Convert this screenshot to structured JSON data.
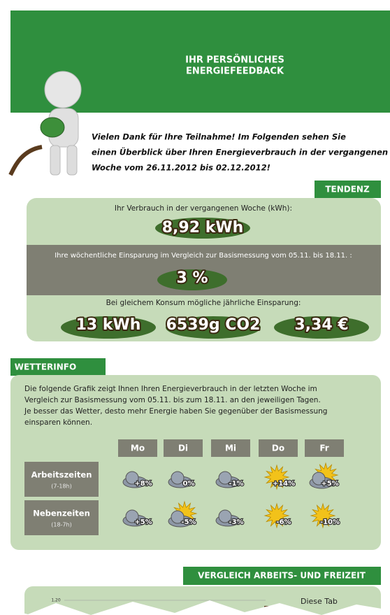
{
  "header": {
    "title_lines": [
      "IHR PERSÖNLICHES",
      "ENERGIEFEEDBACK"
    ]
  },
  "intro": {
    "lines": [
      "Vielen Dank für Ihre Teilnahme! Im Folgenden sehen Sie",
      "einen Überblick über Ihren Energieverbrauch in der vergangenen",
      "Woche vom 26.11.2012 bis 02.12.2012!"
    ]
  },
  "tendenz": {
    "label": "TENDENZ",
    "consumption_label": "Ihr Verbrauch in der vergangenen Woche (kWh):",
    "consumption_value": "8,92 kWh",
    "savings_label": "Ihre wöchentliche Einsparung im Vergleich zur Basismessung vom 05.11. bis 18.11. :",
    "savings_value": "3 %",
    "annual_label": "Bei gleichem Konsum mögliche jährliche Einsparung:",
    "annual_values": [
      "13 kWh",
      "6539g CO2",
      "3,34 €"
    ]
  },
  "wetterinfo": {
    "label": "WETTERINFO",
    "text_lines": [
      "Die folgende Grafik zeigt Ihnen Ihren Energieverbrauch in der letzten Woche im",
      "Vergleich zur Basismessung vom 05.11. bis zum 18.11. an den jeweiligen Tagen.",
      "Je besser das Wetter, desto mehr Energie haben Sie gegenüber der Basismessung",
      "einsparen können."
    ],
    "days": [
      "Mo",
      "Di",
      "Mi",
      "Do",
      "Fr"
    ],
    "rows": [
      {
        "label": "Arbeitszeiten",
        "hours": "(7-18h)",
        "values": [
          "+8%",
          "0%",
          "-1%",
          "+14%",
          "+5%"
        ]
      },
      {
        "label": "Nebenzeiten",
        "hours": "(18-7h)",
        "values": [
          "+5%",
          "-5%",
          "-3%",
          "-6%",
          "-10%"
        ]
      }
    ]
  },
  "vergleich": {
    "label": "VERGLEICH ARBEITS- UND FREIZEIT",
    "axis_tick": "1,20",
    "text_start": "Diese Tab"
  }
}
